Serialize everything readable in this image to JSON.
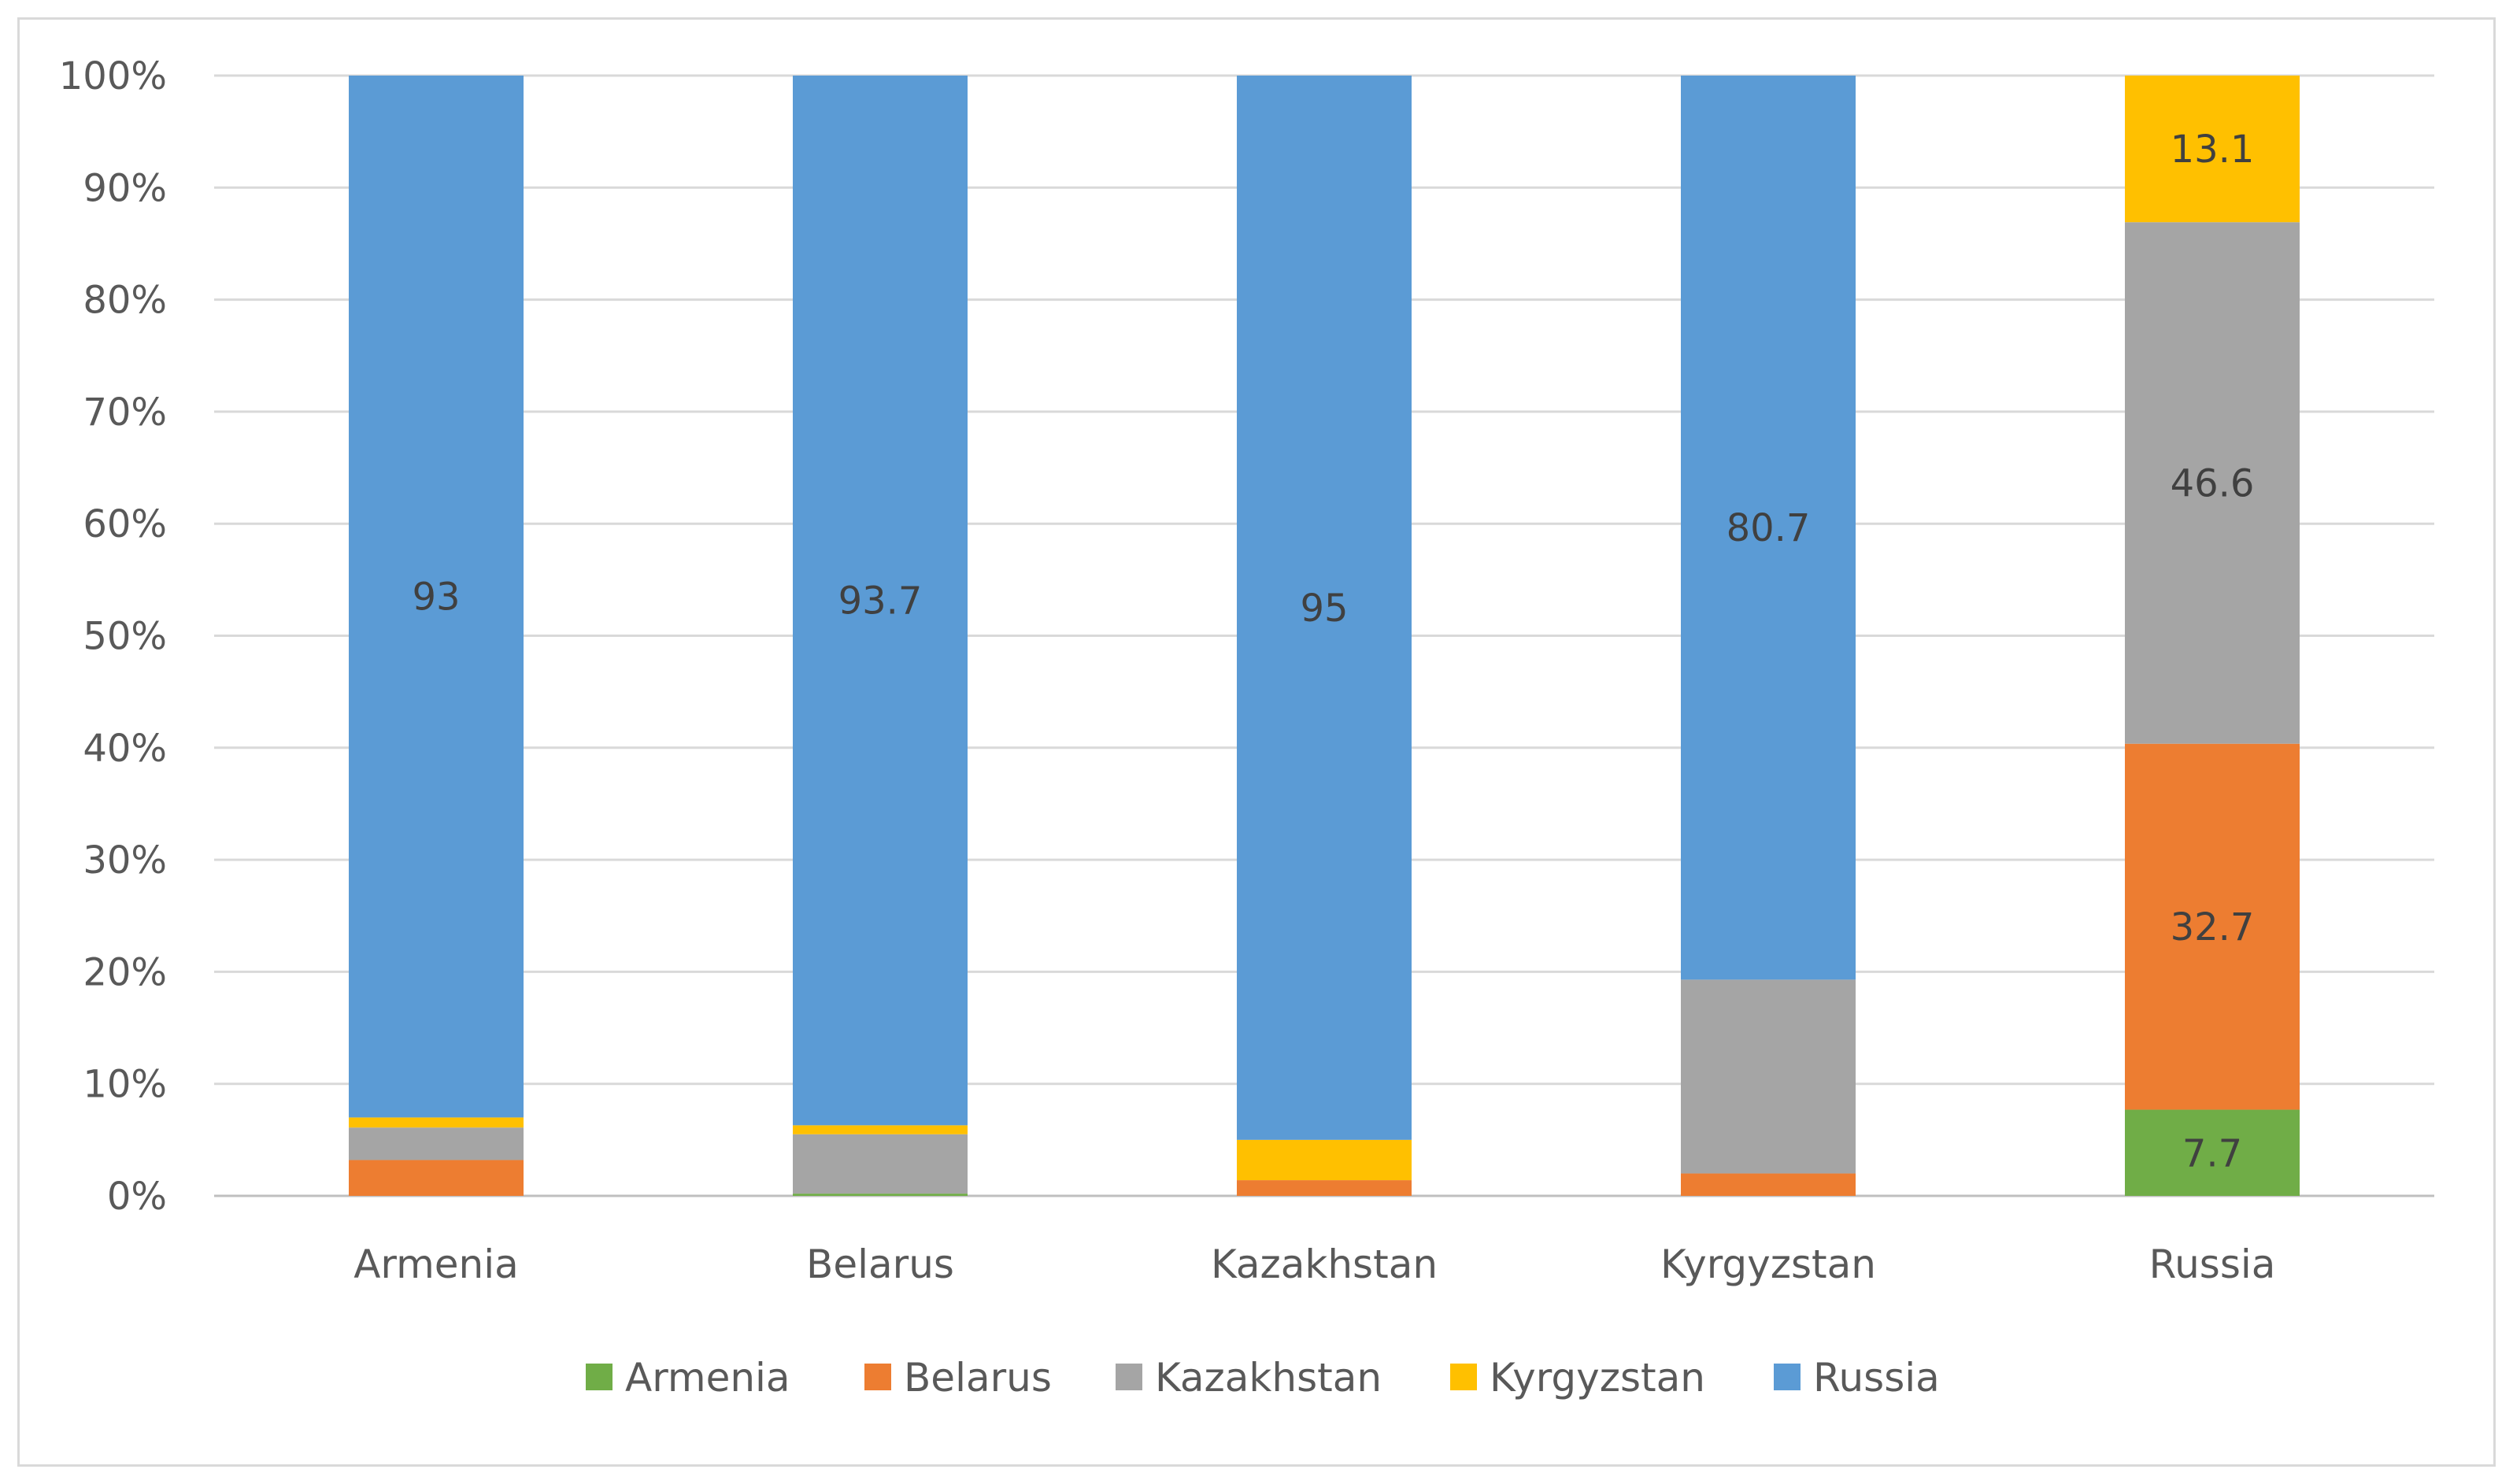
{
  "chart_data": {
    "type": "bar",
    "stacked": true,
    "normalized": true,
    "title": "",
    "xlabel": "",
    "ylabel": "",
    "ylim": [
      0,
      100
    ],
    "y_ticks": [
      "0%",
      "10%",
      "20%",
      "30%",
      "40%",
      "50%",
      "60%",
      "70%",
      "80%",
      "90%",
      "100%"
    ],
    "categories": [
      "Armenia",
      "Belarus",
      "Kazakhstan",
      "Kyrgyzstan",
      "Russia"
    ],
    "series": [
      {
        "name": "Armenia",
        "color": "#70ad47",
        "values": [
          0,
          0.2,
          0,
          0,
          7.7
        ]
      },
      {
        "name": "Belarus",
        "color": "#ed7d31",
        "values": [
          3.2,
          0,
          1.4,
          2.0,
          32.7
        ]
      },
      {
        "name": "Kazakhstan",
        "color": "#a5a5a5",
        "values": [
          2.9,
          5.3,
          0,
          17.3,
          46.6
        ]
      },
      {
        "name": "Kyrgyzstan",
        "color": "#ffc000",
        "values": [
          0.9,
          0.8,
          3.6,
          0,
          13.1
        ]
      },
      {
        "name": "Russia",
        "color": "#5b9bd5",
        "values": [
          93,
          93.7,
          95,
          80.7,
          0
        ]
      }
    ],
    "data_labels": [
      {
        "category": "Armenia",
        "series": "Russia",
        "text": "93"
      },
      {
        "category": "Belarus",
        "series": "Russia",
        "text": "93.7"
      },
      {
        "category": "Kazakhstan",
        "series": "Russia",
        "text": "95"
      },
      {
        "category": "Kyrgyzstan",
        "series": "Russia",
        "text": "80.7"
      },
      {
        "category": "Russia",
        "series": "Armenia",
        "text": "7.7"
      },
      {
        "category": "Russia",
        "series": "Belarus",
        "text": "32.7"
      },
      {
        "category": "Russia",
        "series": "Kazakhstan",
        "text": "46.6"
      },
      {
        "category": "Russia",
        "series": "Kyrgyzstan",
        "text": "13.1"
      }
    ],
    "grid": true,
    "legend_position": "bottom"
  }
}
